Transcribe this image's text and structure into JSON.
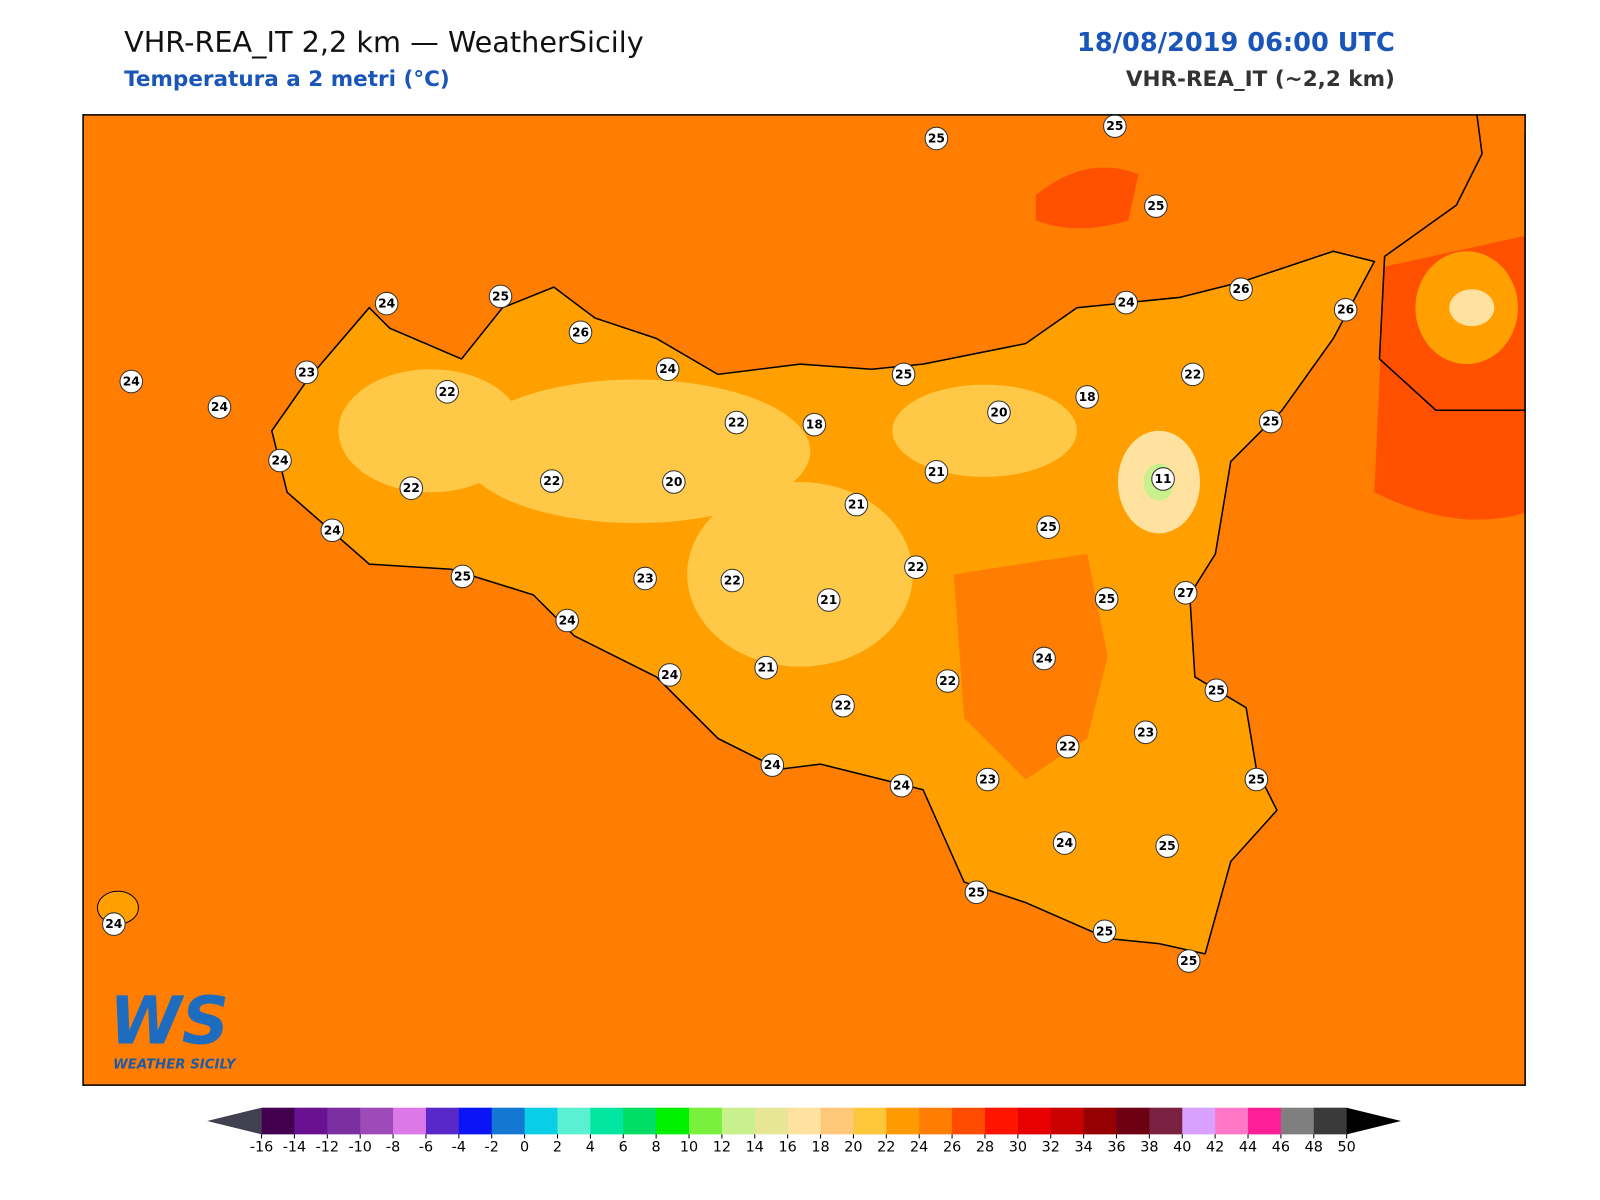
{
  "header": {
    "title": "VHR-REA_IT 2,2 km — WeatherSicily",
    "subtitle": "Temperatura a 2 metri (°C)",
    "datetime": "18/08/2019 06:00 UTC",
    "model": "VHR-REA_IT (~2,2 km)"
  },
  "stations": [
    25,
    25,
    25,
    24,
    25,
    26,
    26,
    26,
    24,
    24,
    23,
    24,
    22,
    24,
    25,
    22,
    18,
    20,
    22,
    18,
    25,
    24,
    22,
    22,
    20,
    21,
    11,
    21,
    24,
    25,
    25,
    23,
    22,
    21,
    22,
    25,
    27,
    24,
    24,
    24,
    21,
    22,
    22,
    25,
    23,
    22,
    24,
    24,
    23,
    25,
    24,
    25,
    25,
    25,
    25,
    24
  ],
  "colorbar": {
    "ticks": [
      -16,
      -14,
      -12,
      -10,
      -8,
      -6,
      -4,
      -2,
      0,
      2,
      4,
      6,
      8,
      10,
      12,
      14,
      16,
      18,
      20,
      22,
      24,
      26,
      28,
      30,
      32,
      34,
      36,
      38,
      40,
      42,
      44,
      46,
      48,
      50
    ],
    "colors": [
      "#42004f",
      "#6a1191",
      "#7b2fa0",
      "#9c4bb8",
      "#dc78e8",
      "#5a28c8",
      "#0a14f5",
      "#1478d2",
      "#0acde6",
      "#5af0d2",
      "#00e6a0",
      "#00dc64",
      "#00f000",
      "#78f03c",
      "#c8f08c",
      "#e6e696",
      "#ffe1a0",
      "#ffc878",
      "#ffc83c",
      "#ff9a00",
      "#ff7d00",
      "#ff4c00",
      "#ff1400",
      "#e60000",
      "#c80000",
      "#960000",
      "#6e0014",
      "#7a2040",
      "#d8a0ff",
      "#ff78c8",
      "#ff1e96",
      "#7f7f7f",
      "#3a3a3a"
    ],
    "under_color": "#404050",
    "over_color": "#000000"
  },
  "logo": {
    "text": "WS",
    "caption": "WEATHER SICILY"
  }
}
